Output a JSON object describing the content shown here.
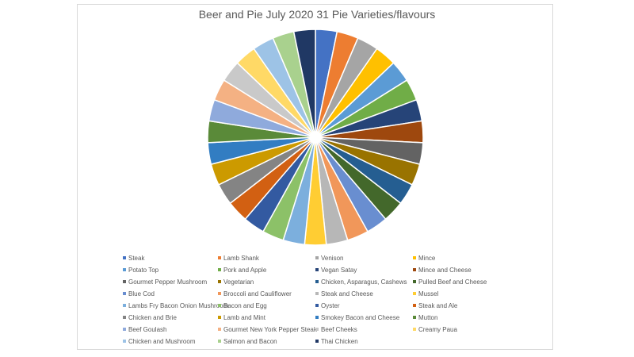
{
  "chart_data": {
    "type": "pie",
    "title": "Beer and Pie July 2020 31 Pie Varieties/flavours",
    "legend_position": "bottom",
    "labels": [
      "Steak",
      "Lamb Shank",
      "Venison",
      "Mince",
      "Potato Top",
      "Pork and Apple",
      "Vegan Satay",
      "Mince and Cheese",
      "Gourmet Pepper Mushroom",
      "Vegetarian",
      "Chicken, Asparagus, Cashews",
      "Pulled Beef and Cheese",
      "Blue Cod",
      "Broccoli and Cauliflower",
      "Steak and Cheese",
      "Mussel",
      "Lambs Fry Bacon Onion Mushroom",
      "Bacon and Egg",
      "Oyster",
      "Steak and Ale",
      "Chicken and Brie",
      "Lamb and Mint",
      "Smokey Bacon and Cheese",
      "Mutton",
      "Beef Goulash",
      "Gourmet New York Pepper Steak",
      "Beef Cheeks",
      "Creamy Paua",
      "Chicken and Mushroom",
      "Salmon and Bacon",
      "Thai Chicken"
    ],
    "values": [
      1,
      1,
      1,
      1,
      1,
      1,
      1,
      1,
      1,
      1,
      1,
      1,
      1,
      1,
      1,
      1,
      1,
      1,
      1,
      1,
      1,
      1,
      1,
      1,
      1,
      1,
      1,
      1,
      1,
      1,
      1
    ],
    "colors": [
      "#4472C4",
      "#ED7D31",
      "#A5A5A5",
      "#FFC000",
      "#5B9BD5",
      "#70AD47",
      "#264478",
      "#9E480E",
      "#636363",
      "#997300",
      "#255E91",
      "#43682B",
      "#698ED0",
      "#F1975A",
      "#B7B7B7",
      "#FFCD33",
      "#7CAFDD",
      "#8CC168",
      "#335AA1",
      "#D26012",
      "#848484",
      "#CC9A00",
      "#327DC2",
      "#5A8A39",
      "#8FAADC",
      "#F4B183",
      "#C9C9C9",
      "#FFD966",
      "#9DC3E6",
      "#A9D18E",
      "#203864"
    ]
  }
}
